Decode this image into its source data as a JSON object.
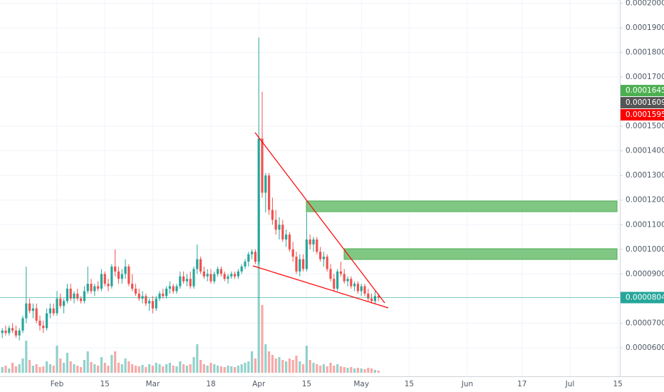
{
  "chart_data": {
    "type": "candlestick",
    "categories": [
      null,
      null,
      null,
      null,
      null,
      null,
      null,
      null,
      null,
      null,
      null,
      null,
      null,
      null,
      null,
      null,
      "Feb",
      null,
      null,
      null,
      null,
      null,
      null,
      null,
      null,
      null,
      null,
      null,
      null,
      null,
      "15",
      null,
      null,
      null,
      null,
      null,
      null,
      null,
      null,
      null,
      null,
      null,
      null,
      null,
      "Mar",
      null,
      null,
      null,
      null,
      null,
      null,
      null,
      null,
      null,
      null,
      null,
      null,
      null,
      null,
      null,
      null,
      "18",
      null,
      null,
      null,
      null,
      null,
      null,
      null,
      null,
      null,
      null,
      null,
      null,
      null,
      "Apr",
      null,
      null,
      null,
      null,
      null,
      null,
      null,
      null,
      null,
      null,
      null,
      null,
      null,
      "15",
      null,
      null,
      null,
      null,
      null,
      null,
      null,
      null,
      null,
      null,
      null,
      null,
      null,
      null,
      null,
      "May",
      null,
      null,
      null,
      null,
      null,
      null,
      null,
      null,
      null,
      null,
      null,
      null,
      null,
      "15",
      null,
      null,
      null,
      null,
      null,
      null,
      null,
      null,
      null,
      null,
      null,
      null,
      null,
      null,
      null,
      null,
      "Jun",
      null,
      null,
      null,
      null,
      null,
      null,
      null,
      null,
      null,
      null,
      null,
      null,
      null,
      null,
      null,
      "17",
      null,
      null,
      null,
      null,
      null,
      null,
      null,
      null,
      null,
      null,
      null,
      null,
      null,
      "Jul",
      null,
      null,
      null,
      null,
      null,
      null,
      null,
      null,
      null,
      null,
      null,
      null,
      null,
      "15"
    ],
    "open": [
      6.6e-05,
      6.7e-05,
      6.6e-05,
      6.8e-05,
      6.7e-05,
      6.5e-05,
      6.7e-05,
      7.2e-05,
      7.8e-05,
      7.5e-05,
      7.6e-05,
      7.1e-05,
      6.9e-05,
      6.8e-05,
      7.4e-05,
      7.6e-05,
      7.4e-05,
      8e-05,
      7.7e-05,
      7.9e-05,
      8.4e-05,
      8e-05,
      8.2e-05,
      8e-05,
      7.9e-05,
      8.3e-05,
      8.6e-05,
      8.3e-05,
      8.5e-05,
      8.4e-05,
      9e-05,
      8.6e-05,
      8.5e-05,
      9.3e-05,
      9.1e-05,
      8.8e-05,
      9e-05,
      9.3e-05,
      8.6e-05,
      8.4e-05,
      8.2e-05,
      8e-05,
      8.1e-05,
      7.8e-05,
      7.9e-05,
      7.6e-05,
      8e-05,
      8.2e-05,
      8.1e-05,
      8.4e-05,
      8.5e-05,
      8.3e-05,
      8.5e-05,
      8.9e-05,
      8.7e-05,
      8.8e-05,
      8.5e-05,
      9.2e-05,
      9.6e-05,
      9.1e-05,
      8.9e-05,
      9e-05,
      8.7e-05,
      9e-05,
      9.2e-05,
      9e-05,
      8.8e-05,
      8.9e-05,
      9e-05,
      8.9e-05,
      9.1e-05,
      9.3e-05,
      9.5e-05,
      9.8e-05,
      9.9e-05,
      9.5e-05,
      0.000145,
      0.000123,
      0.00013,
      0.000116,
      0.000112,
      0.000108,
      0.00011,
      0.000104,
      0.000106,
      0.0001,
      9.7e-05,
      9.1e-05,
      9.6e-05,
      9.2e-05,
      0.000104,
      0.000102,
      0.000104,
      9.9e-05,
      9.6e-05,
      9.7e-05,
      9.2e-05,
      8.8e-05,
      8.4e-05,
      9.1e-05,
      9e-05,
      8.7e-05,
      8.8e-05,
      8.5e-05,
      8.6e-05,
      8.3e-05,
      8.5e-05,
      8.2e-05,
      8e-05,
      7.9e-05,
      8.1e-05,
      null,
      null,
      null,
      null,
      null,
      null,
      null,
      null,
      null,
      null,
      null,
      null,
      null,
      null,
      null,
      null,
      null,
      null,
      null,
      null,
      null,
      null,
      null,
      null,
      null,
      null,
      null,
      null,
      null,
      null,
      null,
      null,
      null,
      null,
      null,
      null,
      null,
      null,
      null,
      null,
      null,
      null,
      null,
      null,
      null,
      null,
      null,
      null,
      null,
      null,
      null,
      null,
      null,
      null,
      null,
      null,
      null,
      null,
      null,
      null,
      null,
      null,
      null,
      null,
      null,
      null,
      null,
      null,
      null,
      null
    ],
    "high": [
      6.8e-05,
      6.9e-05,
      6.9e-05,
      7e-05,
      6.9e-05,
      6.8e-05,
      7.3e-05,
      9.3e-05,
      8e-05,
      7.8e-05,
      7.8e-05,
      7.3e-05,
      7.1e-05,
      7.6e-05,
      7.8e-05,
      7.8e-05,
      8.3e-05,
      8.2e-05,
      8e-05,
      8.6e-05,
      8.6e-05,
      8.3e-05,
      8.4e-05,
      8.1e-05,
      8.5e-05,
      9.3e-05,
      8.8e-05,
      8.6e-05,
      8.7e-05,
      9.2e-05,
      9.1e-05,
      8.8e-05,
      9.4e-05,
      0.0001,
      9.3e-05,
      9.2e-05,
      9.6e-05,
      9.4e-05,
      9e-05,
      8.6e-05,
      8.4e-05,
      8.3e-05,
      8.2e-05,
      8e-05,
      8.1e-05,
      8.1e-05,
      8.3e-05,
      8.4e-05,
      8.5e-05,
      8.7e-05,
      8.6e-05,
      8.6e-05,
      9.1e-05,
      9.1e-05,
      9e-05,
      9.1e-05,
      9.3e-05,
      0.000102,
      9.7e-05,
      9.3e-05,
      9.2e-05,
      9.2e-05,
      9.1e-05,
      9.3e-05,
      9.3e-05,
      9.1e-05,
      9e-05,
      9.1e-05,
      9.1e-05,
      9.2e-05,
      9.4e-05,
      9.6e-05,
      9.9e-05,
      0.0001,
      0.0001,
      0.000186,
      0.000164,
      0.000131,
      0.000131,
      0.000121,
      0.000116,
      0.000113,
      0.000112,
      0.000108,
      0.000107,
      0.000103,
      9.9e-05,
      9.8e-05,
      9.8e-05,
      0.000115,
      0.000106,
      0.000105,
      0.000105,
      0.000101,
      9.9e-05,
      9.8e-05,
      9.4e-05,
      9e-05,
      9.2e-05,
      9.5e-05,
      9.2e-05,
      8.9e-05,
      8.9e-05,
      8.7e-05,
      8.7e-05,
      8.6e-05,
      8.6e-05,
      8.4e-05,
      8.2e-05,
      8.3e-05,
      8.2e-05,
      null,
      null,
      null,
      null,
      null,
      null,
      null,
      null,
      null,
      null,
      null,
      null,
      null,
      null,
      null,
      null,
      null,
      null,
      null,
      null,
      null,
      null,
      null,
      null,
      null,
      null,
      null,
      null,
      null,
      null,
      null,
      null,
      null,
      null,
      null,
      null,
      null,
      null,
      null,
      null,
      null,
      null,
      null,
      null,
      null,
      null,
      null,
      null,
      null,
      null,
      null,
      null,
      null,
      null,
      null,
      null,
      null,
      null,
      null,
      null,
      null,
      null,
      null,
      null,
      null,
      null,
      null,
      null,
      null,
      null
    ],
    "low": [
      6.4e-05,
      6.5e-05,
      6.5e-05,
      6.6e-05,
      6.4e-05,
      6.3e-05,
      6.6e-05,
      7e-05,
      7.4e-05,
      7.2e-05,
      7e-05,
      6.7e-05,
      6.6e-05,
      6.7e-05,
      7.2e-05,
      7.3e-05,
      7.3e-05,
      7.6e-05,
      7.4e-05,
      7.8e-05,
      7.9e-05,
      7.8e-05,
      7.9e-05,
      7.8e-05,
      7.8e-05,
      8.2e-05,
      8.2e-05,
      8.1e-05,
      8.3e-05,
      8.3e-05,
      8.5e-05,
      8.3e-05,
      8.4e-05,
      8.9e-05,
      8.6e-05,
      8.6e-05,
      8.8e-05,
      8.5e-05,
      8.3e-05,
      8.1e-05,
      7.9e-05,
      7.8e-05,
      7.7e-05,
      7.5e-05,
      7.4e-05,
      7.5e-05,
      7.9e-05,
      8e-05,
      8e-05,
      8.2e-05,
      8.2e-05,
      8.2e-05,
      8.4e-05,
      8.6e-05,
      8.5e-05,
      8.4e-05,
      8.4e-05,
      9e-05,
      9e-05,
      8.8e-05,
      8.7e-05,
      8.6e-05,
      8.6e-05,
      8.9e-05,
      8.9e-05,
      8.7e-05,
      8.6e-05,
      8.8e-05,
      8.8e-05,
      8.8e-05,
      9e-05,
      9.2e-05,
      9.3e-05,
      9.6e-05,
      9.4e-05,
      9.4e-05,
      0.000121,
      0.000115,
      0.000114,
      0.00011,
      0.000106,
      0.000104,
      0.000103,
      0.000101,
      9.9e-05,
      9.5e-05,
      9e-05,
      8.9e-05,
      9.1e-05,
      9.1e-05,
      0.0001,
      9.9e-05,
      9.8e-05,
      9.5e-05,
      9.3e-05,
      9.1e-05,
      8.7e-05,
      8.3e-05,
      8.3e-05,
      8.9e-05,
      8.6e-05,
      8.5e-05,
      8.4e-05,
      8.3e-05,
      8.2e-05,
      8.1e-05,
      8.1e-05,
      7.9e-05,
      7.8e-05,
      7.8e-05,
      7.9e-05,
      null,
      null,
      null,
      null,
      null,
      null,
      null,
      null,
      null,
      null,
      null,
      null,
      null,
      null,
      null,
      null,
      null,
      null,
      null,
      null,
      null,
      null,
      null,
      null,
      null,
      null,
      null,
      null,
      null,
      null,
      null,
      null,
      null,
      null,
      null,
      null,
      null,
      null,
      null,
      null,
      null,
      null,
      null,
      null,
      null,
      null,
      null,
      null,
      null,
      null,
      null,
      null,
      null,
      null,
      null,
      null,
      null,
      null,
      null,
      null,
      null,
      null,
      null,
      null,
      null,
      null,
      null,
      null,
      null,
      null
    ],
    "close": [
      6.7e-05,
      6.6e-05,
      6.8e-05,
      6.7e-05,
      6.5e-05,
      6.7e-05,
      7.2e-05,
      7.8e-05,
      7.5e-05,
      7.6e-05,
      7.1e-05,
      6.9e-05,
      6.8e-05,
      7.4e-05,
      7.6e-05,
      7.4e-05,
      8e-05,
      7.7e-05,
      7.9e-05,
      8.4e-05,
      8e-05,
      8.2e-05,
      8e-05,
      7.9e-05,
      8.3e-05,
      8.6e-05,
      8.3e-05,
      8.5e-05,
      8.4e-05,
      9e-05,
      8.6e-05,
      8.5e-05,
      9.3e-05,
      9.1e-05,
      8.8e-05,
      9e-05,
      9.3e-05,
      8.6e-05,
      8.4e-05,
      8.2e-05,
      8e-05,
      8.1e-05,
      7.8e-05,
      7.9e-05,
      7.6e-05,
      8e-05,
      8.2e-05,
      8.1e-05,
      8.4e-05,
      8.5e-05,
      8.3e-05,
      8.5e-05,
      8.9e-05,
      8.7e-05,
      8.8e-05,
      8.5e-05,
      9.2e-05,
      9.6e-05,
      9.1e-05,
      8.9e-05,
      9e-05,
      8.7e-05,
      9e-05,
      9.2e-05,
      9e-05,
      8.8e-05,
      8.9e-05,
      9e-05,
      8.9e-05,
      9.1e-05,
      9.3e-05,
      9.5e-05,
      9.8e-05,
      9.9e-05,
      9.5e-05,
      0.000145,
      0.000123,
      0.00013,
      0.000116,
      0.000112,
      0.000108,
      0.00011,
      0.000104,
      0.000106,
      0.0001,
      9.7e-05,
      9.1e-05,
      9.6e-05,
      9.2e-05,
      0.000104,
      0.000102,
      0.000104,
      9.9e-05,
      9.6e-05,
      9.7e-05,
      9.2e-05,
      8.8e-05,
      8.4e-05,
      9.1e-05,
      9e-05,
      8.7e-05,
      8.8e-05,
      8.5e-05,
      8.6e-05,
      8.3e-05,
      8.5e-05,
      8.2e-05,
      8e-05,
      7.9e-05,
      8.1e-05,
      8.04e-05,
      null,
      null,
      null,
      null,
      null,
      null,
      null,
      null,
      null,
      null,
      null,
      null,
      null,
      null,
      null,
      null,
      null,
      null,
      null,
      null,
      null,
      null,
      null,
      null,
      null,
      null,
      null,
      null,
      null,
      null,
      null,
      null,
      null,
      null,
      null,
      null,
      null,
      null,
      null,
      null,
      null,
      null,
      null,
      null,
      null,
      null,
      null,
      null,
      null,
      null,
      null,
      null,
      null,
      null,
      null,
      null,
      null,
      null,
      null,
      null,
      null,
      null,
      null,
      null,
      null,
      null,
      null,
      null,
      null,
      null
    ],
    "volume": [
      8,
      10,
      6,
      14,
      9,
      12,
      20,
      45,
      18,
      10,
      12,
      8,
      9,
      16,
      12,
      10,
      38,
      20,
      14,
      28,
      16,
      12,
      10,
      8,
      18,
      30,
      15,
      12,
      10,
      22,
      14,
      10,
      25,
      30,
      14,
      12,
      20,
      16,
      12,
      10,
      9,
      11,
      8,
      12,
      10,
      14,
      12,
      9,
      12,
      14,
      10,
      9,
      16,
      12,
      10,
      12,
      22,
      40,
      18,
      12,
      10,
      14,
      12,
      10,
      9,
      8,
      10,
      9,
      8,
      10,
      12,
      14,
      16,
      30,
      20,
      168,
      95,
      40,
      30,
      25,
      20,
      22,
      18,
      16,
      20,
      18,
      24,
      16,
      12,
      38,
      18,
      14,
      12,
      10,
      12,
      9,
      14,
      10,
      12,
      9,
      8,
      7,
      8,
      6,
      7,
      6,
      5,
      7,
      6,
      4,
      3,
      null,
      null,
      null,
      null,
      null,
      null,
      null,
      null,
      null,
      null,
      null,
      null,
      null,
      null,
      null,
      null,
      null,
      null,
      null,
      null,
      null,
      null,
      null,
      null,
      null,
      null,
      null,
      null,
      null,
      null,
      null,
      null,
      null,
      null,
      null,
      null,
      null,
      null,
      null,
      null,
      null,
      null,
      null,
      null,
      null,
      null,
      null,
      null,
      null,
      null,
      null,
      null,
      null,
      null,
      null,
      null,
      null,
      null,
      null,
      null,
      null,
      null,
      null,
      null,
      null,
      null,
      null,
      null,
      null,
      null
    ],
    "up_color": "#26a69a",
    "down_color": "#ef5350",
    "ylim": [
      4.84e-05,
      0.0002013
    ],
    "yticks": [
      {
        "value": 0.0002,
        "label": "0.0002000"
      },
      {
        "value": 0.00019,
        "label": "0.0001900"
      },
      {
        "value": 0.00018,
        "label": "0.0001800"
      },
      {
        "value": 0.00017,
        "label": "0.0001700"
      },
      {
        "value": 0.00015,
        "label": "0.0001500"
      },
      {
        "value": 0.00014,
        "label": "0.0001400"
      },
      {
        "value": 0.00013,
        "label": "0.0001300"
      },
      {
        "value": 0.00012,
        "label": "0.0001200"
      },
      {
        "value": 0.00011,
        "label": "0.0001100"
      },
      {
        "value": 0.0001,
        "label": "0.0001000"
      },
      {
        "value": 9e-05,
        "label": "0.0000900"
      },
      {
        "value": 7e-05,
        "label": "0.0000700"
      },
      {
        "value": 6e-05,
        "label": "0.0000600"
      }
    ],
    "grid": true,
    "price_labels": [
      {
        "value": 0.0001645,
        "label": "0.0001645",
        "color": "#4caf50"
      },
      {
        "value": 0.0001609,
        "label": "0.0001609",
        "color": "#555555"
      },
      {
        "value": 0.0001595,
        "label": "0.0001595",
        "color": "#ff0000"
      },
      {
        "value": 8.04e-05,
        "label": "0.0000804",
        "color": "#26a69a"
      }
    ]
  }
}
